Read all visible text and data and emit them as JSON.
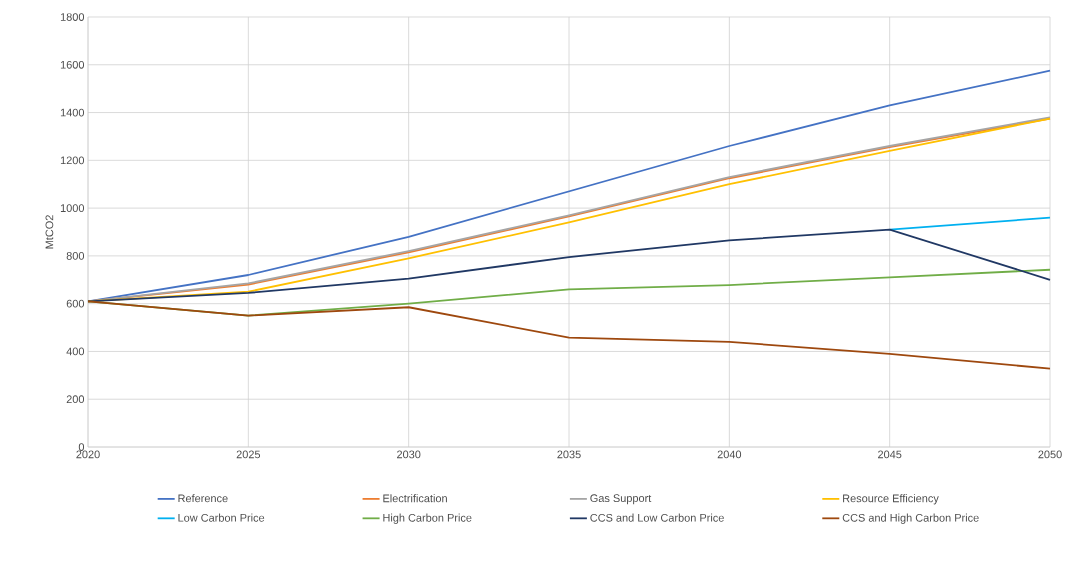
{
  "chart_data": {
    "type": "line",
    "ylabel": "MtCO2",
    "x": [
      2020,
      2025,
      2030,
      2035,
      2040,
      2045,
      2050
    ],
    "xlim": [
      2020,
      2050
    ],
    "xticks": [
      2020,
      2025,
      2030,
      2035,
      2040,
      2045,
      2050
    ],
    "ylim": [
      0,
      1800
    ],
    "yticks": [
      0,
      200,
      400,
      600,
      800,
      1000,
      1200,
      1400,
      1600,
      1800
    ],
    "grid": true,
    "legend": "bottom",
    "line_style": "solid",
    "series": [
      {
        "name": "Reference",
        "color": "#4472c4",
        "values": [
          610,
          720,
          880,
          1070,
          1260,
          1430,
          1575
        ]
      },
      {
        "name": "Electrification",
        "color": "#ed7d31",
        "values": [
          610,
          680,
          815,
          965,
          1125,
          1255,
          1375
        ]
      },
      {
        "name": "Gas Support",
        "color": "#a5a5a5",
        "values": [
          610,
          685,
          820,
          970,
          1130,
          1260,
          1380
        ]
      },
      {
        "name": "Resource Efficiency",
        "color": "#ffc000",
        "values": [
          610,
          650,
          790,
          940,
          1100,
          1240,
          1375
        ]
      },
      {
        "name": "Low Carbon Price",
        "color": "#00b0f0",
        "values": [
          null,
          null,
          null,
          null,
          null,
          910,
          960
        ]
      },
      {
        "name": "High Carbon Price",
        "color": "#70ad47",
        "values": [
          610,
          550,
          600,
          660,
          678,
          710,
          742
        ]
      },
      {
        "name": "CCS and Low Carbon Price",
        "color": "#203864",
        "values": [
          610,
          645,
          705,
          795,
          865,
          910,
          700
        ]
      },
      {
        "name": "CCS and High Carbon Price",
        "color": "#9e480e",
        "values": [
          610,
          550,
          585,
          458,
          440,
          390,
          328
        ]
      }
    ]
  }
}
